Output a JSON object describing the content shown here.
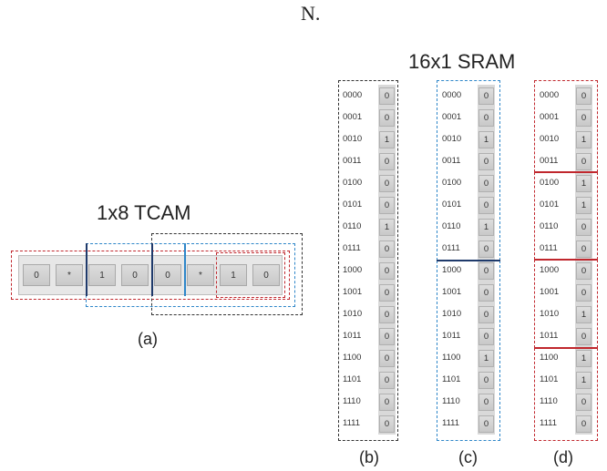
{
  "top_text": "N.",
  "tcam": {
    "title": "1x8 TCAM",
    "caption": "(a)",
    "cells": [
      "0",
      "*",
      "1",
      "0",
      "0",
      "*",
      "1",
      "0"
    ]
  },
  "sram": {
    "title": "16x1 SRAM",
    "addresses": [
      "0000",
      "0001",
      "0010",
      "0011",
      "0100",
      "0101",
      "0110",
      "0111",
      "1000",
      "1001",
      "1010",
      "1011",
      "1100",
      "1101",
      "1110",
      "1111"
    ],
    "columns": [
      {
        "caption": "(b)",
        "bits": [
          "0",
          "0",
          "1",
          "0",
          "0",
          "0",
          "1",
          "0",
          "0",
          "0",
          "0",
          "0",
          "0",
          "0",
          "0",
          "0"
        ]
      },
      {
        "caption": "(c)",
        "bits": [
          "0",
          "0",
          "1",
          "0",
          "0",
          "0",
          "1",
          "0",
          "0",
          "0",
          "0",
          "0",
          "1",
          "0",
          "0",
          "0"
        ]
      },
      {
        "caption": "(d)",
        "bits": [
          "0",
          "0",
          "1",
          "0",
          "1",
          "1",
          "0",
          "0",
          "0",
          "0",
          "1",
          "0",
          "1",
          "1",
          "0",
          "0"
        ]
      }
    ]
  },
  "colors": {
    "red": "#c0272d",
    "blue": "#2e86c9",
    "black": "#333333",
    "navy": "#1f3a6b"
  }
}
